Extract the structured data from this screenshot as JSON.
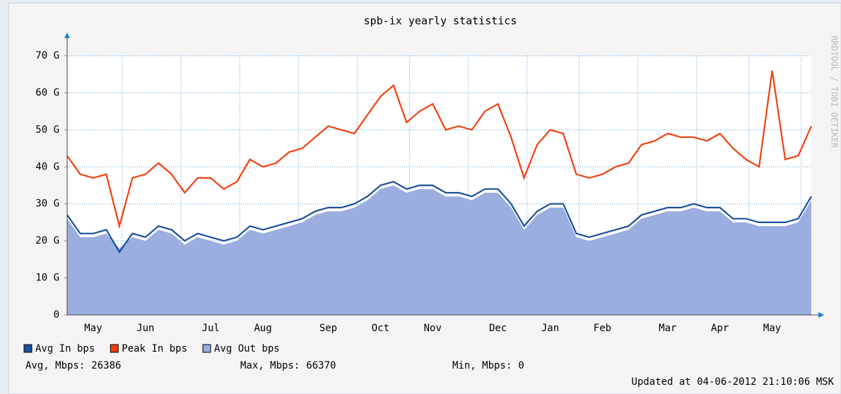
{
  "chart_data": {
    "type": "line",
    "title": "spb-ix yearly statistics",
    "side_label": "RRDTOOL / TOBI OETIKER",
    "categories": [
      null,
      null,
      "May",
      null,
      null,
      null,
      "Jun",
      null,
      null,
      null,
      null,
      "Jul",
      null,
      null,
      null,
      "Aug",
      null,
      null,
      null,
      null,
      "Sep",
      null,
      null,
      null,
      "Oct",
      null,
      null,
      null,
      "Nov",
      null,
      null,
      null,
      null,
      "Dec",
      null,
      null,
      null,
      "Jan",
      null,
      null,
      null,
      "Feb",
      null,
      null,
      null,
      null,
      "Mar",
      null,
      null,
      null,
      "Apr",
      null,
      null,
      null,
      "May",
      null,
      null,
      null
    ],
    "series": [
      {
        "name": "Avg In bps",
        "color": "#1c4e9b",
        "style": "line",
        "values": [
          27,
          22,
          22,
          23,
          17,
          22,
          21,
          24,
          23,
          20,
          22,
          21,
          20,
          21,
          24,
          23,
          24,
          25,
          26,
          28,
          29,
          29,
          30,
          32,
          35,
          36,
          34,
          35,
          35,
          33,
          33,
          32,
          34,
          34,
          30,
          24,
          28,
          30,
          30,
          22,
          21,
          22,
          23,
          24,
          27,
          28,
          29,
          29,
          30,
          29,
          29,
          26,
          26,
          25,
          25,
          25,
          26,
          32
        ]
      },
      {
        "name": "Peak In bps",
        "color": "#f0400f",
        "style": "line",
        "values": [
          43,
          38,
          37,
          38,
          24,
          37,
          38,
          41,
          38,
          33,
          37,
          37,
          34,
          36,
          42,
          40,
          41,
          44,
          45,
          48,
          51,
          50,
          49,
          54,
          59,
          62,
          52,
          55,
          57,
          50,
          51,
          50,
          55,
          57,
          48,
          37,
          46,
          50,
          49,
          38,
          37,
          38,
          40,
          41,
          46,
          47,
          49,
          48,
          48,
          47,
          49,
          45,
          42,
          40,
          66,
          42,
          43,
          51
        ]
      },
      {
        "name": "Avg Out bps",
        "color": "#9aaee0",
        "style": "area",
        "values": [
          26,
          21,
          21,
          22,
          18,
          21,
          20,
          23,
          22,
          19,
          21,
          20,
          19,
          20,
          23,
          22,
          23,
          24,
          25,
          27,
          28,
          28,
          29,
          31,
          34,
          35,
          33,
          34,
          34,
          32,
          32,
          31,
          33,
          33,
          29,
          23,
          27,
          29,
          29,
          21,
          20,
          21,
          22,
          23,
          26,
          27,
          28,
          28,
          29,
          28,
          28,
          25,
          25,
          24,
          24,
          24,
          25,
          31
        ]
      }
    ],
    "ylim": [
      0,
      70
    ],
    "yticks": [
      0,
      {
        "value": 10,
        "label": "10 G"
      },
      {
        "value": 20,
        "label": "20 G"
      },
      {
        "value": 30,
        "label": "30 G"
      },
      {
        "value": 40,
        "label": "40 G"
      },
      {
        "value": 50,
        "label": "50 G"
      },
      {
        "value": 60,
        "label": "60 G"
      },
      {
        "value": 70,
        "label": "70 G"
      }
    ],
    "grid": true,
    "stats": [
      {
        "label": "Avg, Mbps:",
        "value": 26386
      },
      {
        "label": "Max, Mbps:",
        "value": 66370
      },
      {
        "label": "Min, Mbps:",
        "value": 0
      }
    ],
    "updated": "Updated at 04-06-2012 21:10:06 MSK"
  }
}
